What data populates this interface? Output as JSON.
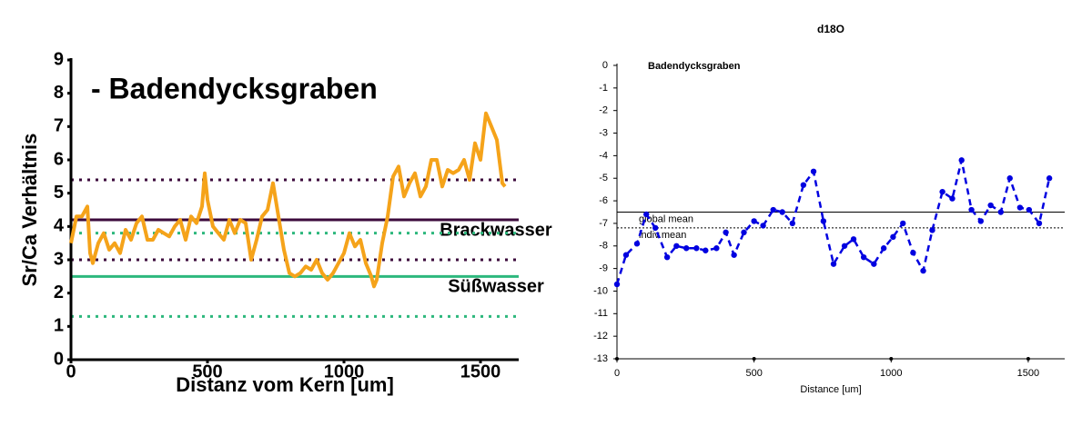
{
  "chart_data": [
    {
      "type": "line",
      "title": "- Badendycksgraben",
      "xlabel": "Distanz vom Kern [um]",
      "ylabel": "Sr/Ca Verhältnis",
      "x": [
        0,
        20,
        40,
        60,
        70,
        80,
        100,
        120,
        140,
        160,
        180,
        200,
        220,
        240,
        260,
        280,
        300,
        320,
        340,
        360,
        380,
        400,
        420,
        440,
        460,
        480,
        490,
        500,
        520,
        540,
        560,
        580,
        600,
        620,
        640,
        660,
        680,
        700,
        720,
        740,
        760,
        780,
        800,
        820,
        840,
        860,
        880,
        900,
        920,
        940,
        960,
        980,
        1000,
        1020,
        1040,
        1060,
        1080,
        1100,
        1110,
        1120,
        1140,
        1160,
        1180,
        1200,
        1220,
        1240,
        1260,
        1280,
        1300,
        1320,
        1340,
        1360,
        1380,
        1400,
        1420,
        1440,
        1460,
        1480,
        1500,
        1520,
        1540,
        1560,
        1580,
        1590
      ],
      "values": [
        3.5,
        4.3,
        4.3,
        4.6,
        3.2,
        2.9,
        3.5,
        3.8,
        3.3,
        3.5,
        3.2,
        3.9,
        3.6,
        4.1,
        4.3,
        3.6,
        3.6,
        3.9,
        3.8,
        3.7,
        4.0,
        4.2,
        3.6,
        4.3,
        4.1,
        4.6,
        5.6,
        4.8,
        4.0,
        3.8,
        3.6,
        4.2,
        3.8,
        4.2,
        4.1,
        3.0,
        3.6,
        4.3,
        4.5,
        5.3,
        4.3,
        3.3,
        2.6,
        2.5,
        2.6,
        2.8,
        2.7,
        3.0,
        2.6,
        2.4,
        2.6,
        2.9,
        3.2,
        3.8,
        3.4,
        3.6,
        2.9,
        2.5,
        2.2,
        2.4,
        3.5,
        4.3,
        5.5,
        5.8,
        4.9,
        5.3,
        5.6,
        4.9,
        5.2,
        6.0,
        6.0,
        5.2,
        5.7,
        5.6,
        5.7,
        6.0,
        5.4,
        6.5,
        6.0,
        7.4,
        7.0,
        6.6,
        5.3,
        5.2
      ],
      "color": "#f5a31a",
      "dashed": false,
      "markers": false,
      "xlim": [
        0,
        1640
      ],
      "ylim": [
        0,
        9
      ],
      "xticks": [
        0,
        500,
        1000,
        1500
      ],
      "yticks": [
        0,
        1,
        2,
        3,
        4,
        5,
        6,
        7,
        8,
        9
      ],
      "reference_lines": [
        {
          "value": 5.4,
          "color": "#3c0a3c",
          "dashed": true
        },
        {
          "value": 4.2,
          "color": "#3c0a3c",
          "dashed": false,
          "label": "Brackwasser"
        },
        {
          "value": 3.0,
          "color": "#3c0a3c",
          "dashed": true
        },
        {
          "value": 3.8,
          "color": "#2db87d",
          "dashed": true
        },
        {
          "value": 2.5,
          "color": "#2db87d",
          "dashed": false,
          "label": "Süßwasser"
        },
        {
          "value": 1.3,
          "color": "#2db87d",
          "dashed": true
        }
      ]
    },
    {
      "type": "line",
      "title": "d18O",
      "annotation": "Badendycksgraben",
      "xlabel": "Distance [um]",
      "x": [
        0,
        33,
        73,
        107,
        140,
        183,
        217,
        253,
        290,
        323,
        363,
        397,
        427,
        463,
        500,
        533,
        570,
        603,
        640,
        680,
        717,
        753,
        790,
        830,
        863,
        900,
        937,
        973,
        1007,
        1043,
        1080,
        1117,
        1150,
        1187,
        1223,
        1257,
        1293,
        1327,
        1363,
        1400,
        1433,
        1470,
        1503,
        1540,
        1577
      ],
      "values": [
        -9.7,
        -8.4,
        -7.9,
        -6.6,
        -7.2,
        -8.5,
        -8.0,
        -8.1,
        -8.1,
        -8.2,
        -8.1,
        -7.4,
        -8.4,
        -7.4,
        -6.9,
        -7.1,
        -6.4,
        -6.5,
        -7.0,
        -5.3,
        -4.7,
        -6.9,
        -8.8,
        -8.0,
        -7.7,
        -8.5,
        -8.8,
        -8.1,
        -7.6,
        -7.0,
        -8.3,
        -9.1,
        -7.3,
        -5.6,
        -5.9,
        -4.2,
        -6.4,
        -6.9,
        -6.2,
        -6.5,
        -5.0,
        -6.3,
        -6.4,
        -7.0,
        -5.0
      ],
      "color": "#0000e0",
      "dashed": true,
      "markers": true,
      "xlim": [
        0,
        1633
      ],
      "ylim": [
        -13,
        0
      ],
      "xticks": [
        0,
        500,
        1000,
        1500
      ],
      "yticks": [
        0,
        -1,
        -2,
        -3,
        -4,
        -5,
        -6,
        -7,
        -8,
        -9,
        -10,
        -11,
        -12,
        -13
      ],
      "reference_lines": [
        {
          "value": -6.5,
          "color": "#000000",
          "dashed": false,
          "label": "global mean"
        },
        {
          "value": -7.2,
          "color": "#000000",
          "dashed": true,
          "label": "indiv.mean"
        }
      ]
    }
  ]
}
